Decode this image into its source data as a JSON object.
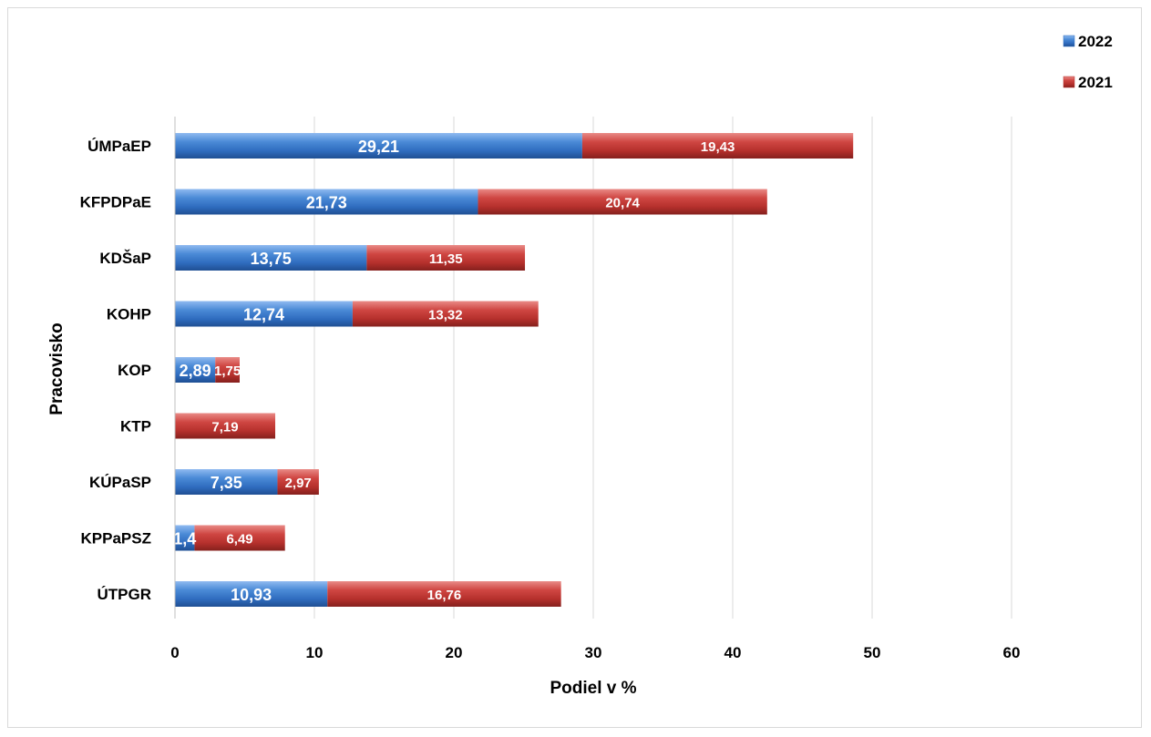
{
  "chart_data": {
    "type": "bar",
    "orientation": "horizontal",
    "stacked": true,
    "title": "",
    "xlabel": "Podiel v %",
    "ylabel": "Pracovisko",
    "xlim": [
      0,
      70
    ],
    "xticks": [
      0,
      10,
      20,
      30,
      40,
      50,
      60
    ],
    "grid": true,
    "legend_position": "top-right",
    "categories": [
      "ÚMPaEP",
      "KFPDPaE",
      "KDŠaP",
      "KOHP",
      "KOP",
      "KTP",
      "KÚPaSP",
      "KPPaPSZ",
      "ÚTPGR"
    ],
    "series": [
      {
        "name": "2022",
        "color": "#3f7fcc",
        "values": [
          29.21,
          21.73,
          13.75,
          12.74,
          2.89,
          0,
          7.35,
          1.4,
          10.93
        ],
        "labels": [
          "29,21",
          "21,73",
          "13,75",
          "12,74",
          "2,89",
          "",
          "7,35",
          "1,4",
          "10,93"
        ]
      },
      {
        "name": "2021",
        "color": "#c43b37",
        "values": [
          19.43,
          20.74,
          11.35,
          13.32,
          1.75,
          7.19,
          2.97,
          6.49,
          16.76
        ],
        "labels": [
          "19,43",
          "20,74",
          "11,35",
          "13,32",
          "1,75",
          "7,19",
          "2,97",
          "6,49",
          "16,76"
        ]
      }
    ],
    "legend_order": [
      "2022",
      "2021"
    ]
  }
}
